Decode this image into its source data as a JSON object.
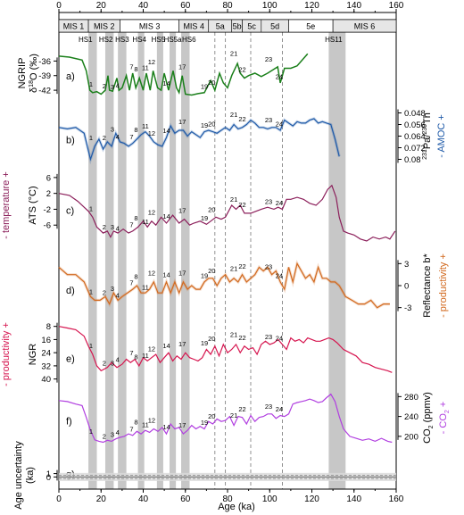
{
  "chart_data": {
    "type": "line",
    "xlabel": "Age (ka)",
    "xlim": [
      0,
      160
    ],
    "x_ticks": [
      0,
      20,
      40,
      60,
      80,
      100,
      120,
      140,
      160
    ],
    "mis_labels": [
      "MIS 1",
      "MIS 2",
      "MIS 3",
      "MIS 4",
      "5a",
      "5b",
      "5c",
      "5d",
      "5e",
      "MIS 6"
    ],
    "mis_bounds": [
      [
        0,
        14
      ],
      [
        14,
        29
      ],
      [
        29,
        57
      ],
      [
        57,
        71
      ],
      [
        71,
        82
      ],
      [
        82,
        87
      ],
      [
        87,
        96
      ],
      [
        96,
        109
      ],
      [
        109,
        130
      ],
      [
        130,
        160
      ]
    ],
    "hs_events": [
      {
        "label": "HS1",
        "age": 16
      },
      {
        "label": "HS2",
        "age": 24
      },
      {
        "label": "HS3",
        "age": 30
      },
      {
        "label": "HS4",
        "age": 39
      },
      {
        "label": "HS5",
        "age": 48
      },
      {
        "label": "HS5a",
        "age": 54
      },
      {
        "label": "HS6",
        "age": 60
      },
      {
        "label": "HS11",
        "age": 132
      }
    ],
    "dashed_lines": [
      74,
      79,
      91,
      106
    ],
    "panels": [
      {
        "letter": "a)",
        "ylabel": "NGRIP δ18O (‰)",
        "ylabel_main": "NGRIP",
        "ylabel_sub": "δ",
        "ylabel_sup": "18",
        "ylabel_tail": "O (‰)",
        "side": "left",
        "color": "#1a7f1a",
        "ticks": [
          -36,
          -39,
          -42
        ],
        "ylim": [
          -44,
          -33
        ],
        "events": [
          "1",
          "2",
          "3",
          "4",
          "7",
          "8",
          "11",
          "12",
          "14",
          "17",
          "19",
          "20",
          "21",
          "22",
          "23",
          "24"
        ],
        "x": [
          0,
          5,
          11,
          13,
          14.7,
          16,
          18,
          20,
          22,
          23.3,
          24,
          25.5,
          27.5,
          28.5,
          30,
          32,
          33.5,
          35,
          36.5,
          38.2,
          40,
          41.5,
          43.3,
          44.7,
          46.8,
          48.5,
          50,
          52,
          54.2,
          55.8,
          57,
          58.5,
          60,
          63,
          66,
          69,
          72,
          74,
          76.2,
          78,
          80,
          82,
          84.7,
          86,
          88,
          90,
          93,
          96,
          99,
          103.8,
          105,
          107,
          110,
          113,
          116,
          118
        ],
        "y": [
          -35,
          -35.2,
          -35.8,
          -38,
          -42,
          -42.5,
          -42.3,
          -42.8,
          -42,
          -39,
          -42,
          -42.2,
          -39.5,
          -42,
          -41.5,
          -39,
          -42,
          -38.5,
          -41.5,
          -39.5,
          -42,
          -38.5,
          -42,
          -38,
          -41.5,
          -42,
          -38.5,
          -42,
          -38,
          -41.5,
          -42.5,
          -39,
          -42.8,
          -43,
          -42.7,
          -42.5,
          -40,
          -42,
          -38.5,
          -40.5,
          -41.5,
          -39,
          -36.5,
          -38.5,
          -39.5,
          -39,
          -38.5,
          -39.2,
          -38.5,
          -37.2,
          -40.5,
          -37.5,
          -37.5,
          -37,
          -35.5,
          -34.5
        ]
      },
      {
        "letter": "b)",
        "ylabel": "231Pa/230Th",
        "ylabel_main": "",
        "ylabel_sub": "",
        "ylabel_sup": "231",
        "ylabel_tail": "Pa/",
        "ylabel_sup2": "230",
        "ylabel_tail2": "Th",
        "ylabel2": "- AMOC +",
        "side": "right",
        "color": "#1f5aa8",
        "ticks": [
          0.048,
          0.056,
          0.064,
          0.072,
          0.08
        ],
        "ylim": [
          0.084,
          0.044
        ],
        "events": [
          "1",
          "2",
          "3",
          "4",
          "7",
          "8",
          "11",
          "12",
          "14",
          "17",
          "19",
          "20",
          "21",
          "22",
          "23",
          "24"
        ],
        "x": [
          0,
          4,
          8,
          12,
          15,
          17,
          19,
          21,
          23,
          25,
          27,
          29,
          31,
          33,
          35,
          37,
          39,
          41,
          43,
          45,
          47,
          49,
          51,
          53,
          55,
          57,
          59,
          61,
          63,
          65,
          67,
          69,
          71,
          73,
          75,
          77,
          79,
          81,
          83,
          85,
          87,
          89,
          91,
          93,
          95,
          97,
          99,
          101,
          103,
          105,
          107,
          109,
          111,
          113,
          115,
          117,
          119,
          121,
          123,
          125,
          127,
          129,
          131,
          133
        ],
        "y": [
          0.058,
          0.059,
          0.058,
          0.062,
          0.08,
          0.071,
          0.066,
          0.073,
          0.068,
          0.071,
          0.062,
          0.068,
          0.069,
          0.071,
          0.069,
          0.066,
          0.063,
          0.061,
          0.064,
          0.068,
          0.07,
          0.071,
          0.065,
          0.057,
          0.062,
          0.06,
          0.06,
          0.064,
          0.061,
          0.063,
          0.065,
          0.061,
          0.06,
          0.061,
          0.062,
          0.06,
          0.058,
          0.06,
          0.056,
          0.059,
          0.058,
          0.056,
          0.053,
          0.055,
          0.058,
          0.058,
          0.059,
          0.058,
          0.058,
          0.06,
          0.053,
          0.055,
          0.057,
          0.054,
          0.055,
          0.055,
          0.053,
          0.052,
          0.055,
          0.054,
          0.055,
          0.056,
          0.066,
          0.078
        ]
      },
      {
        "letter": "c)",
        "ylabel": "ATS (°C)",
        "ylabel_main": "ATS (°C)",
        "ylabel2": "- temperature +",
        "side": "left",
        "color": "#8b1e5a",
        "ticks": [
          6,
          2,
          -2,
          -6
        ],
        "ylim": [
          -10,
          8
        ],
        "events": [
          "1",
          "2",
          "3",
          "4",
          "7",
          "8",
          "11",
          "12",
          "14",
          "17",
          "19",
          "20",
          "21",
          "22",
          "23",
          "24"
        ],
        "x": [
          0,
          5,
          9,
          12,
          14,
          16,
          18,
          21,
          23,
          24.5,
          26,
          28,
          30.5,
          33,
          35,
          37.5,
          40,
          42,
          44,
          46,
          48.5,
          51,
          54,
          57,
          59.5,
          62,
          64,
          67,
          70,
          72,
          74.5,
          77,
          79,
          82,
          84,
          86,
          88,
          91,
          93.5,
          96,
          99,
          102,
          104,
          106,
          108,
          110,
          113,
          116,
          119,
          122,
          125,
          127.5,
          129.5,
          131.5,
          133,
          135,
          137,
          140,
          143,
          146,
          149,
          152,
          155,
          157,
          159.5
        ],
        "y": [
          2,
          1.5,
          0,
          -1.5,
          -2.5,
          -4,
          -6.5,
          -8,
          -7.5,
          -9,
          -7.5,
          -8,
          -7,
          -8,
          -7.5,
          -6.5,
          -5,
          -6.5,
          -5,
          -6,
          -4,
          -5.5,
          -3.5,
          -5.5,
          -4.5,
          -6,
          -5.5,
          -5,
          -5.8,
          -5,
          -4,
          -4.5,
          -4,
          -1,
          -2,
          -1,
          -3,
          -3,
          -2.5,
          -2,
          -1.5,
          -2,
          -1.5,
          -2,
          0.5,
          0.5,
          1,
          0.5,
          -0.5,
          -1,
          0.5,
          3,
          4,
          1,
          -4,
          -7.5,
          -8,
          -8.5,
          -9.5,
          -10,
          -9,
          -9.5,
          -9,
          -9.5,
          -7.5
        ]
      },
      {
        "letter": "d)",
        "ylabel": "Reflectance b*",
        "ylabel_main": "Reflectance b*",
        "ylabel2": "- productivity +",
        "side": "right",
        "color": "#d2691e",
        "ticks": [
          3,
          0,
          -3
        ],
        "ylim": [
          -4.5,
          4.5
        ],
        "events": [
          "1",
          "2",
          "3",
          "4",
          "7",
          "8",
          "11",
          "12",
          "14",
          "17",
          "19",
          "20",
          "21",
          "22",
          "23",
          "24"
        ],
        "x": [
          0,
          4,
          8,
          12,
          15,
          17,
          19.5,
          22,
          24,
          26,
          28,
          30,
          32.5,
          35,
          37,
          39,
          41,
          43,
          45,
          47,
          49,
          51,
          53,
          55,
          57,
          59,
          61,
          63,
          65,
          67,
          69,
          71,
          73,
          75,
          77,
          79,
          81,
          83,
          85,
          87,
          89,
          91,
          93,
          95,
          97,
          99,
          101,
          103,
          105,
          107,
          109,
          111,
          113,
          115,
          117,
          119,
          121,
          123,
          125,
          127,
          129,
          131,
          133,
          136,
          139,
          142,
          145,
          148,
          151,
          154,
          157
        ],
        "y": [
          2.5,
          1.5,
          1.5,
          0.5,
          -1.5,
          -2,
          -2,
          -1.5,
          -2.5,
          -1,
          -2,
          -1.5,
          -1,
          -0.5,
          0,
          -1,
          -1,
          -0.5,
          0.5,
          -1,
          -1,
          0.5,
          -1,
          0.5,
          -1,
          0.5,
          -0.5,
          0,
          -0.5,
          -0.5,
          0.5,
          1,
          1,
          0,
          1,
          1.5,
          0.5,
          1,
          0.5,
          1.5,
          0.5,
          1,
          1.5,
          2.5,
          2,
          2.5,
          1.5,
          2,
          0.5,
          -0.5,
          2.5,
          0.5,
          3,
          2,
          1,
          1.5,
          0.5,
          2.5,
          1,
          1,
          0.5,
          0.5,
          0,
          -1.5,
          -2,
          -2.5,
          -2.5,
          -2,
          -3,
          -2.5,
          -2.5
        ]
      },
      {
        "letter": "e)",
        "ylabel": "NGR",
        "ylabel_main": "NGR",
        "ylabel2": "- productivity +",
        "side": "left",
        "color": "#d6154f",
        "ticks": [
          8,
          16,
          24,
          32,
          40
        ],
        "ylim": [
          44,
          6
        ],
        "events": [
          "1",
          "2",
          "3",
          "4",
          "7",
          "8",
          "11",
          "12",
          "14",
          "17",
          "19",
          "20",
          "21",
          "22",
          "23",
          "24"
        ],
        "x": [
          0,
          4,
          8,
          12,
          14,
          16,
          18,
          20,
          23,
          25,
          27.5,
          30,
          32,
          34,
          36,
          38,
          40,
          42,
          44,
          46,
          48,
          50,
          52,
          54,
          56,
          58,
          60,
          62,
          64,
          66,
          68,
          70,
          72,
          74,
          76,
          78,
          80,
          82,
          84,
          86,
          88,
          90,
          92,
          94,
          96,
          98,
          100,
          102,
          104,
          106,
          108,
          110,
          112,
          114,
          116,
          118,
          120,
          122,
          124,
          126,
          128,
          130,
          132,
          135,
          138,
          141,
          144,
          147,
          150,
          153,
          156,
          158
        ],
        "y": [
          8,
          9,
          10,
          14,
          20,
          25,
          32,
          35,
          33,
          30,
          33,
          31,
          28,
          30,
          28,
          32,
          27,
          29,
          27,
          25,
          30,
          27,
          24,
          29,
          26,
          28,
          24,
          27,
          28,
          29,
          27,
          22,
          25,
          20,
          26,
          19,
          24,
          22,
          19,
          24,
          20,
          22,
          21,
          25,
          19,
          17,
          19,
          18,
          16,
          19,
          22,
          15,
          17,
          16,
          18,
          15,
          16,
          17,
          17,
          16,
          15,
          16,
          18,
          22,
          24,
          26,
          30,
          31,
          33,
          34,
          35,
          36
        ]
      },
      {
        "letter": "f)",
        "ylabel": "CO2 (ppmv)",
        "ylabel_main": "CO",
        "ylabel_sub": "2",
        "ylabel_tail": " (ppmv)",
        "ylabel2": "- CO2 +",
        "ylabel2_main": "- CO",
        "ylabel2_sub": "2",
        "ylabel2_tail": " +",
        "side": "right",
        "color": "#b13fe0",
        "ticks": [
          280,
          240,
          200
        ],
        "ylim": [
          180,
          295
        ],
        "events": [
          "1",
          "2",
          "3",
          "4",
          "7",
          "8",
          "11",
          "12",
          "14",
          "17",
          "19",
          "20",
          "21",
          "22",
          "23",
          "24"
        ],
        "x": [
          0,
          4,
          8,
          11,
          13,
          15,
          17,
          19,
          21,
          23,
          25,
          27,
          29,
          31,
          33,
          35,
          37,
          39,
          41,
          43,
          45,
          47,
          49,
          51,
          53,
          55,
          57,
          59,
          61,
          63,
          65,
          67,
          69,
          71,
          73,
          75,
          77,
          79,
          81,
          83,
          85,
          87,
          89,
          91,
          93,
          95,
          97,
          99,
          101,
          103,
          105,
          107,
          109,
          111,
          113,
          115,
          117,
          119,
          121,
          123,
          125,
          127,
          129,
          131,
          133,
          135,
          138,
          141,
          144,
          147,
          150,
          153,
          156,
          158
        ],
        "y": [
          272,
          270,
          265,
          262,
          238,
          212,
          193,
          190,
          188,
          192,
          190,
          195,
          198,
          200,
          205,
          202,
          210,
          205,
          212,
          208,
          215,
          210,
          218,
          205,
          225,
          215,
          218,
          205,
          212,
          222,
          215,
          220,
          215,
          230,
          225,
          235,
          230,
          232,
          240,
          222,
          240,
          238,
          225,
          242,
          230,
          238,
          240,
          245,
          245,
          236,
          242,
          240,
          245,
          265,
          268,
          270,
          272,
          275,
          272,
          268,
          270,
          278,
          285,
          270,
          240,
          215,
          200,
          196,
          192,
          195,
          190,
          196,
          190,
          188
        ]
      },
      {
        "letter": "g)",
        "ylabel": "Age uncertainty (ka)",
        "ylabel_main": "Age uncertainty",
        "ylabel_tail": "(ka)",
        "side": "left",
        "color": "#888888",
        "ticks": [
          0,
          1
        ],
        "ylim": [
          -2,
          3
        ],
        "events": [],
        "x": [
          0,
          160
        ],
        "y": [
          0,
          0
        ]
      }
    ]
  }
}
